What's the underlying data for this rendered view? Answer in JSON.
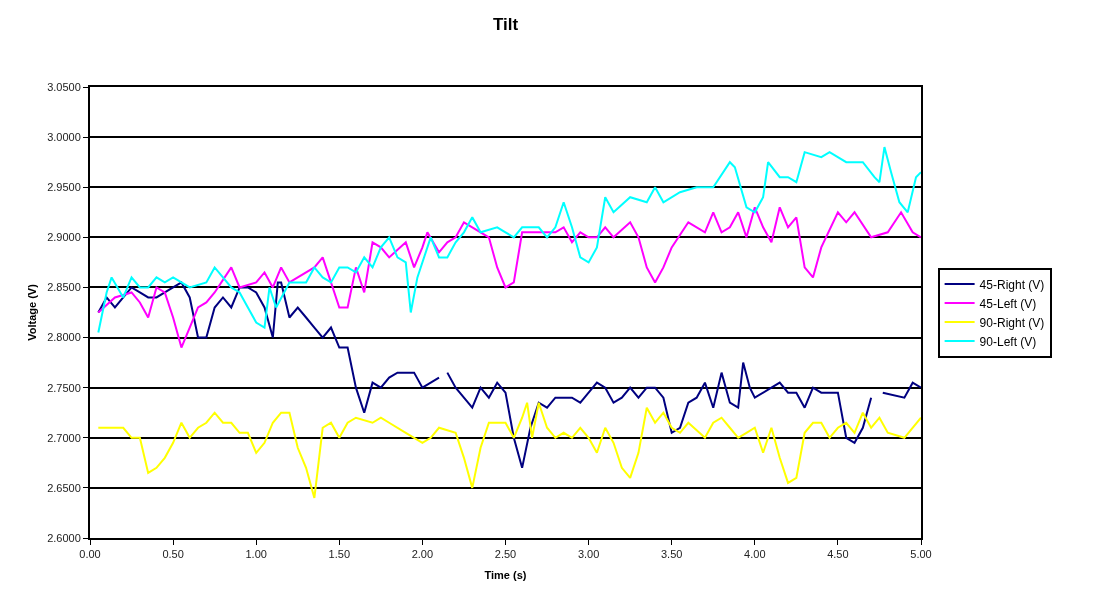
{
  "chart_data": {
    "type": "line",
    "title": "Tilt",
    "xlabel": "Time (s)",
    "ylabel": "Voltage (V)",
    "xlim": [
      0,
      5
    ],
    "xticks": [
      {
        "value": 0,
        "label": "0.00"
      },
      {
        "value": 0.5,
        "label": "0.50"
      },
      {
        "value": 1,
        "label": "1.00"
      },
      {
        "value": 1.5,
        "label": "1.50"
      },
      {
        "value": 2,
        "label": "2.00"
      },
      {
        "value": 2.5,
        "label": "2.50"
      },
      {
        "value": 3,
        "label": "3.00"
      },
      {
        "value": 3.5,
        "label": "3.50"
      },
      {
        "value": 4,
        "label": "4.00"
      },
      {
        "value": 4.5,
        "label": "4.50"
      },
      {
        "value": 5,
        "label": "5.00"
      }
    ],
    "ylim": [
      2.6,
      3.05
    ],
    "yticks": [
      {
        "value": 2.6,
        "label": "2.6000"
      },
      {
        "value": 2.65,
        "label": "2.6500"
      },
      {
        "value": 2.7,
        "label": "2.7000"
      },
      {
        "value": 2.75,
        "label": "2.7500"
      },
      {
        "value": 2.8,
        "label": "2.8000"
      },
      {
        "value": 2.85,
        "label": "2.8500"
      },
      {
        "value": 2.9,
        "label": "2.9000"
      },
      {
        "value": 2.95,
        "label": "2.9500"
      },
      {
        "value": 3,
        "label": "3.0000"
      },
      {
        "value": 3.05,
        "label": "3.0500"
      }
    ],
    "grid": "y",
    "legend": "right",
    "marker": "none",
    "line_style": "solid",
    "series": [
      {
        "name": "45-Right (V)",
        "color": "#000080",
        "x": [
          0.05,
          0.1,
          0.15,
          0.2,
          0.25,
          0.3,
          0.35,
          0.4,
          0.45,
          0.5,
          0.55,
          0.6,
          0.65,
          0.7,
          0.75,
          0.8,
          0.85,
          0.9,
          0.95,
          1.0,
          1.05,
          1.1,
          1.13,
          1.15,
          1.2,
          1.25,
          1.3,
          1.35,
          1.4,
          1.45,
          1.5,
          1.55,
          1.6,
          1.65,
          1.7,
          1.75,
          1.8,
          1.85,
          1.9,
          1.95,
          2.0,
          2.05,
          2.1,
          2.12,
          2.15,
          2.2,
          2.3,
          2.35,
          2.4,
          2.45,
          2.5,
          2.55,
          2.6,
          2.65,
          2.7,
          2.75,
          2.8,
          2.9,
          2.95,
          3.0,
          3.05,
          3.1,
          3.15,
          3.2,
          3.25,
          3.3,
          3.35,
          3.4,
          3.45,
          3.5,
          3.55,
          3.6,
          3.65,
          3.7,
          3.75,
          3.8,
          3.85,
          3.9,
          3.93,
          3.97,
          4.0,
          4.1,
          4.15,
          4.2,
          4.25,
          4.3,
          4.35,
          4.4,
          4.5,
          4.55,
          4.6,
          4.65,
          4.7,
          4.75,
          4.77,
          4.9,
          4.95,
          5.0
        ],
        "values": [
          2.825,
          2.84,
          2.83,
          2.84,
          2.85,
          2.845,
          2.84,
          2.84,
          2.845,
          2.85,
          2.855,
          2.84,
          2.8,
          2.8,
          2.83,
          2.84,
          2.83,
          2.85,
          2.85,
          2.845,
          2.83,
          2.8,
          2.855,
          2.855,
          2.82,
          2.83,
          2.82,
          2.81,
          2.8,
          2.81,
          2.79,
          2.79,
          2.75,
          2.725,
          2.755,
          2.75,
          2.76,
          2.765,
          2.765,
          2.765,
          2.75,
          2.755,
          2.76,
          null,
          2.765,
          2.75,
          2.73,
          2.75,
          2.74,
          2.755,
          2.745,
          2.7,
          2.67,
          2.71,
          2.735,
          2.73,
          2.74,
          2.74,
          2.735,
          2.745,
          2.755,
          2.75,
          2.735,
          2.74,
          2.75,
          2.74,
          2.75,
          2.75,
          2.74,
          2.705,
          2.71,
          2.735,
          2.74,
          2.755,
          2.73,
          2.765,
          2.735,
          2.73,
          2.775,
          2.75,
          2.74,
          2.75,
          2.755,
          2.745,
          2.745,
          2.73,
          2.75,
          2.745,
          2.745,
          2.7,
          2.695,
          2.71,
          2.74,
          null,
          2.745,
          2.74,
          2.755,
          2.75
        ]
      },
      {
        "name": "45-Left (V)",
        "color": "#ff00ff",
        "x": [
          0.05,
          0.15,
          0.25,
          0.3,
          0.35,
          0.4,
          0.45,
          0.5,
          0.55,
          0.6,
          0.65,
          0.7,
          0.75,
          0.85,
          0.9,
          1.0,
          1.05,
          1.1,
          1.15,
          1.2,
          1.35,
          1.4,
          1.45,
          1.5,
          1.55,
          1.6,
          1.65,
          1.7,
          1.75,
          1.8,
          1.9,
          1.95,
          2.0,
          2.03,
          2.1,
          2.15,
          2.2,
          2.25,
          2.3,
          2.35,
          2.4,
          2.45,
          2.5,
          2.55,
          2.6,
          2.7,
          2.8,
          2.85,
          2.9,
          2.95,
          3.0,
          3.05,
          3.1,
          3.15,
          3.25,
          3.3,
          3.35,
          3.4,
          3.45,
          3.5,
          3.6,
          3.7,
          3.75,
          3.8,
          3.85,
          3.9,
          3.95,
          4.0,
          4.05,
          4.1,
          4.15,
          4.2,
          4.25,
          4.3,
          4.35,
          4.4,
          4.5,
          4.55,
          4.6,
          4.7,
          4.8,
          4.88,
          4.95,
          5.0
        ],
        "values": [
          2.825,
          2.84,
          2.845,
          2.835,
          2.82,
          2.85,
          2.845,
          2.82,
          2.79,
          2.81,
          2.83,
          2.835,
          2.845,
          2.87,
          2.85,
          2.855,
          2.865,
          2.85,
          2.87,
          2.855,
          2.87,
          2.88,
          2.855,
          2.83,
          2.83,
          2.87,
          2.845,
          2.895,
          2.89,
          2.88,
          2.895,
          2.87,
          2.89,
          2.905,
          2.885,
          2.895,
          2.9,
          2.915,
          2.91,
          2.905,
          2.9,
          2.87,
          2.85,
          2.855,
          2.905,
          2.905,
          2.905,
          2.91,
          2.895,
          2.905,
          2.9,
          2.9,
          2.91,
          2.9,
          2.915,
          2.9,
          2.87,
          2.855,
          2.87,
          2.89,
          2.915,
          2.905,
          2.925,
          2.905,
          2.91,
          2.925,
          2.9,
          2.93,
          2.91,
          2.895,
          2.93,
          2.91,
          2.92,
          2.87,
          2.86,
          2.89,
          2.925,
          2.915,
          2.925,
          2.9,
          2.905,
          2.925,
          2.905,
          2.9
        ]
      },
      {
        "name": "90-Right (V)",
        "color": "#ffff00",
        "x": [
          0.05,
          0.1,
          0.15,
          0.2,
          0.25,
          0.3,
          0.35,
          0.4,
          0.45,
          0.5,
          0.55,
          0.6,
          0.65,
          0.7,
          0.75,
          0.8,
          0.85,
          0.9,
          0.95,
          1.0,
          1.05,
          1.1,
          1.15,
          1.2,
          1.25,
          1.3,
          1.35,
          1.4,
          1.45,
          1.5,
          1.55,
          1.6,
          1.7,
          1.75,
          1.8,
          1.9,
          2.0,
          2.05,
          2.1,
          2.2,
          2.25,
          2.3,
          2.35,
          2.4,
          2.45,
          2.5,
          2.55,
          2.6,
          2.63,
          2.66,
          2.7,
          2.75,
          2.8,
          2.85,
          2.9,
          2.95,
          3.0,
          3.05,
          3.1,
          3.15,
          3.2,
          3.25,
          3.3,
          3.35,
          3.4,
          3.45,
          3.5,
          3.55,
          3.6,
          3.7,
          3.75,
          3.8,
          3.85,
          3.9,
          3.95,
          4.0,
          4.05,
          4.1,
          4.15,
          4.2,
          4.25,
          4.3,
          4.35,
          4.4,
          4.45,
          4.5,
          4.55,
          4.6,
          4.65,
          4.7,
          4.75,
          4.8,
          4.9,
          5.0
        ],
        "values": [
          2.71,
          2.71,
          2.71,
          2.71,
          2.7,
          2.7,
          2.665,
          2.67,
          2.68,
          2.695,
          2.715,
          2.7,
          2.71,
          2.715,
          2.725,
          2.715,
          2.715,
          2.705,
          2.705,
          2.685,
          2.695,
          2.715,
          2.725,
          2.725,
          2.69,
          2.67,
          2.64,
          2.71,
          2.715,
          2.7,
          2.715,
          2.72,
          2.715,
          2.72,
          2.715,
          2.705,
          2.695,
          2.7,
          2.71,
          2.705,
          2.68,
          2.65,
          2.69,
          2.715,
          2.715,
          2.715,
          2.7,
          2.72,
          2.735,
          2.7,
          2.735,
          2.71,
          2.7,
          2.705,
          2.7,
          2.71,
          2.7,
          2.685,
          2.71,
          2.695,
          2.67,
          2.66,
          2.685,
          2.73,
          2.715,
          2.725,
          2.71,
          2.705,
          2.715,
          2.7,
          2.715,
          2.72,
          2.71,
          2.7,
          2.705,
          2.71,
          2.685,
          2.71,
          2.68,
          2.655,
          2.66,
          2.705,
          2.715,
          2.715,
          2.7,
          2.71,
          2.715,
          2.705,
          2.725,
          2.71,
          2.72,
          2.705,
          2.7,
          2.72
        ]
      },
      {
        "name": "90-Left (V)",
        "color": "#00ffff",
        "x": [
          0.05,
          0.1,
          0.13,
          0.2,
          0.25,
          0.3,
          0.35,
          0.4,
          0.45,
          0.5,
          0.55,
          0.6,
          0.7,
          0.75,
          0.8,
          0.85,
          0.9,
          0.95,
          1.0,
          1.05,
          1.08,
          1.12,
          1.2,
          1.3,
          1.35,
          1.4,
          1.45,
          1.5,
          1.55,
          1.6,
          1.65,
          1.7,
          1.75,
          1.8,
          1.85,
          1.9,
          1.93,
          1.97,
          2.05,
          2.1,
          2.15,
          2.2,
          2.25,
          2.3,
          2.35,
          2.45,
          2.5,
          2.55,
          2.6,
          2.7,
          2.75,
          2.8,
          2.85,
          2.9,
          2.95,
          3.0,
          3.05,
          3.1,
          3.15,
          3.25,
          3.35,
          3.4,
          3.45,
          3.55,
          3.65,
          3.75,
          3.85,
          3.88,
          3.95,
          4.0,
          4.05,
          4.08,
          4.15,
          4.2,
          4.25,
          4.3,
          4.4,
          4.45,
          4.55,
          4.65,
          4.72,
          4.75,
          4.78,
          4.82,
          4.87,
          4.92,
          4.97,
          5.0
        ],
        "values": [
          2.805,
          2.845,
          2.86,
          2.84,
          2.86,
          2.85,
          2.85,
          2.86,
          2.855,
          2.86,
          2.855,
          2.85,
          2.855,
          2.87,
          2.86,
          2.85,
          2.845,
          2.83,
          2.815,
          2.81,
          2.85,
          2.83,
          2.855,
          2.855,
          2.87,
          2.86,
          2.855,
          2.87,
          2.87,
          2.865,
          2.88,
          2.87,
          2.89,
          2.9,
          2.88,
          2.875,
          2.825,
          2.86,
          2.9,
          2.88,
          2.88,
          2.895,
          2.905,
          2.92,
          2.905,
          2.91,
          2.905,
          2.9,
          2.91,
          2.91,
          2.9,
          2.91,
          2.935,
          2.91,
          2.88,
          2.875,
          2.89,
          2.94,
          2.925,
          2.94,
          2.935,
          2.95,
          2.935,
          2.945,
          2.95,
          2.95,
          2.975,
          2.97,
          2.93,
          2.925,
          2.94,
          2.975,
          2.96,
          2.96,
          2.955,
          2.985,
          2.98,
          2.985,
          2.975,
          2.975,
          2.96,
          2.955,
          2.99,
          2.965,
          2.935,
          2.925,
          2.96,
          2.965
        ]
      }
    ]
  }
}
